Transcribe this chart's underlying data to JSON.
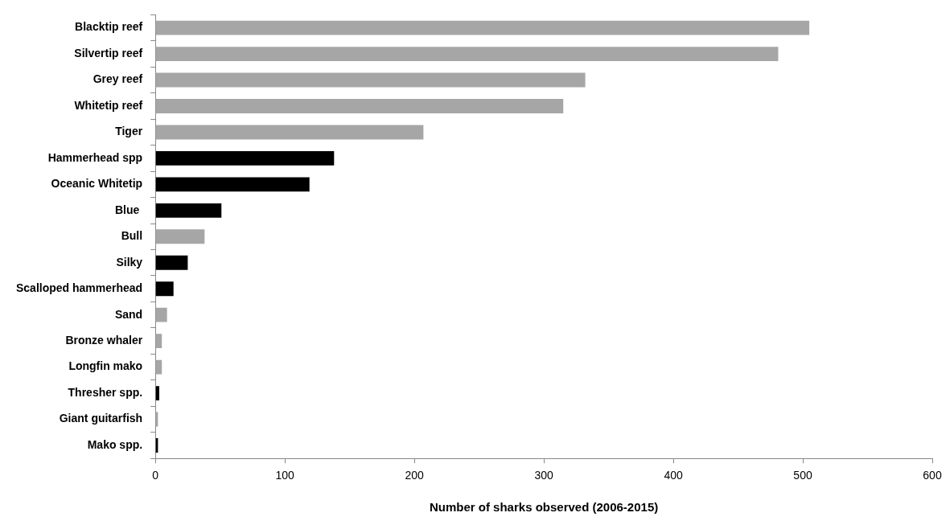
{
  "chart_data": {
    "type": "bar",
    "orientation": "horizontal",
    "xlabel": "Number of sharks observed (2006-2015)",
    "categories": [
      "Blacktip reef",
      "Silvertip reef",
      "Grey reef",
      "Whitetip reef",
      "Tiger",
      "Hammerhead spp",
      "Oceanic Whitetip",
      "Blue ",
      "Bull",
      "Silky",
      "Scalloped hammerhead",
      "Sand",
      "Bronze whaler",
      "Longfin mako",
      "Thresher spp.",
      "Giant guitarfish",
      "Mako spp."
    ],
    "values": [
      505,
      481,
      332,
      315,
      207,
      138,
      119,
      51,
      38,
      25,
      14,
      9,
      5,
      5,
      3,
      2,
      2
    ],
    "colors": [
      "#a6a6a6",
      "#a6a6a6",
      "#a6a6a6",
      "#a6a6a6",
      "#a6a6a6",
      "#000000",
      "#000000",
      "#000000",
      "#a6a6a6",
      "#000000",
      "#000000",
      "#a6a6a6",
      "#a6a6a6",
      "#a6a6a6",
      "#000000",
      "#a6a6a6",
      "#000000"
    ],
    "xlim": [
      0,
      600
    ],
    "xticks": [
      0,
      100,
      200,
      300,
      400,
      500,
      600
    ],
    "grid": false,
    "legend": false
  }
}
